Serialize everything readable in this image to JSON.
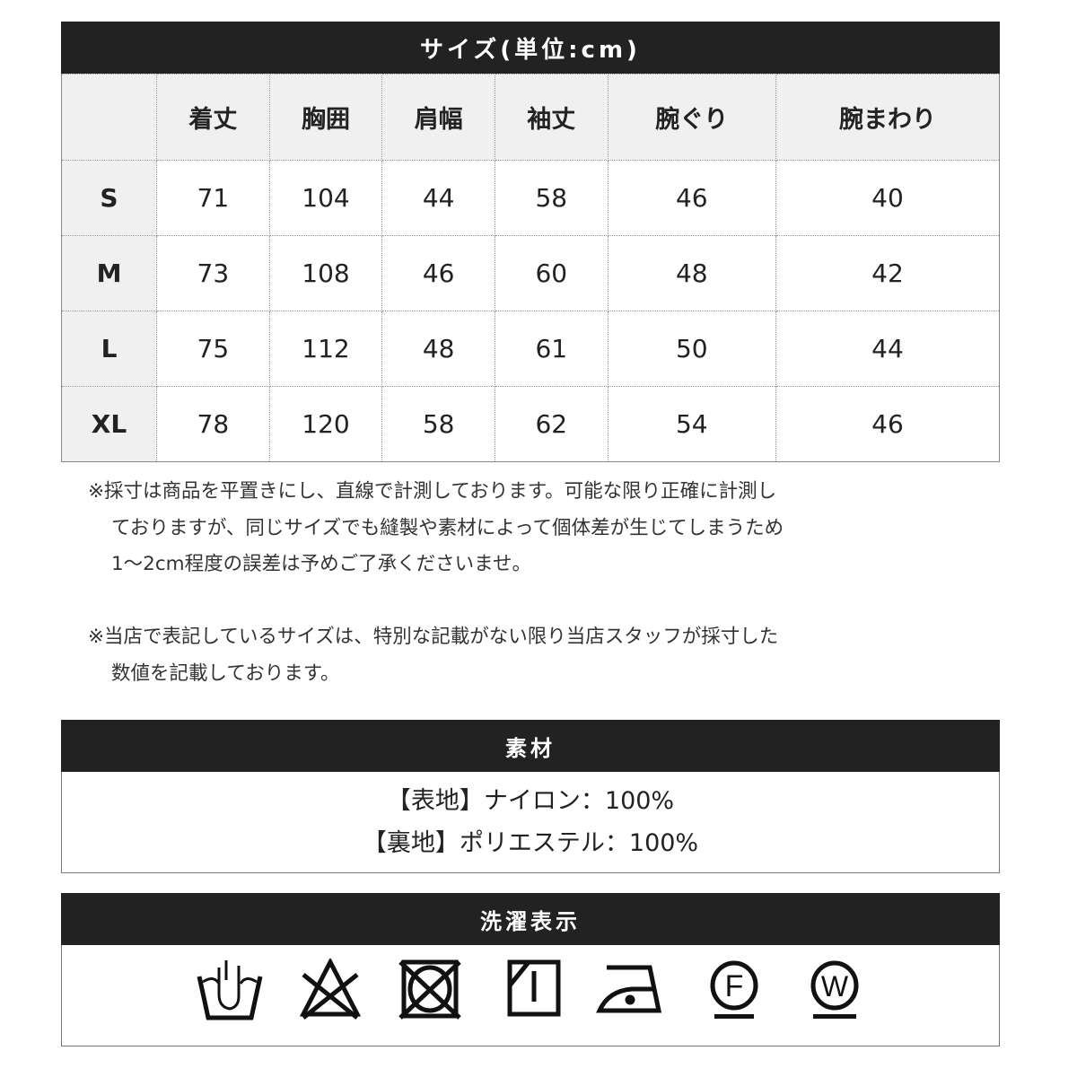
{
  "size_table": {
    "title": "サイズ(単位:cm)",
    "headers": [
      "",
      "着丈",
      "胸囲",
      "肩幅",
      "袖丈",
      "腕ぐり",
      "腕まわり"
    ],
    "rows": [
      [
        "S",
        "71",
        "104",
        "44",
        "58",
        "46",
        "40"
      ],
      [
        "M",
        "73",
        "108",
        "46",
        "60",
        "48",
        "42"
      ],
      [
        "L",
        "75",
        "112",
        "48",
        "61",
        "50",
        "44"
      ],
      [
        "XL",
        "78",
        "120",
        "58",
        "62",
        "54",
        "46"
      ]
    ]
  },
  "notes": [
    "※採寸は商品を平置きにし、直線で計測しております。可能な限り正確に計測し",
    "ておりますが、同じサイズでも縫製や素材によって個体差が生じてしまうため",
    "1～2cm程度の誤差は予めご了承くださいませ。",
    "※当店で表記しているサイズは、特別な記載がない限り当店スタッフが採寸した",
    "数値を記載しております。"
  ],
  "material": {
    "title": "素材",
    "lines": [
      "【表地】ナイロン：100%",
      "【裏地】ポリエステル：100%"
    ]
  },
  "care": {
    "title": "洗濯表示",
    "icons": [
      "hand-wash-icon",
      "no-bleach-icon",
      "no-tumble-dry-icon",
      "line-dry-shade-icon",
      "iron-low-icon",
      "dry-clean-f-icon",
      "wet-clean-w-icon"
    ],
    "letters": [
      "F",
      "W"
    ]
  }
}
